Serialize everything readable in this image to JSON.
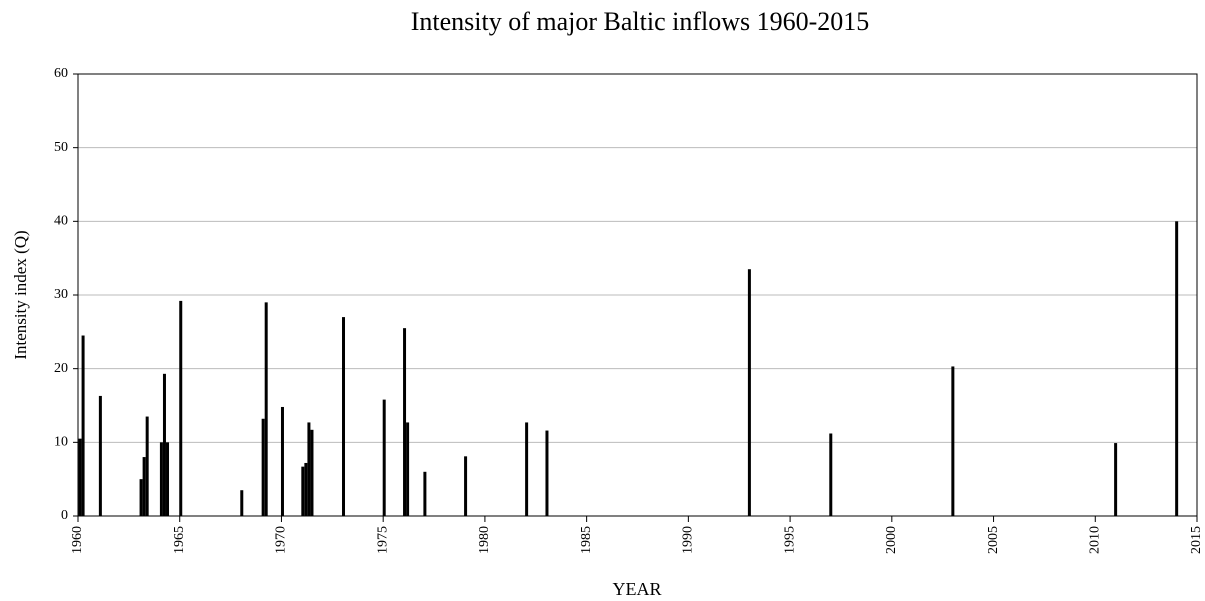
{
  "chart_data": {
    "type": "bar",
    "title": "Intensity of major Baltic inflows 1960-2015",
    "x_label": "YEAR",
    "y_label": "Intensity index (Q)",
    "x": [
      1960.1,
      1960.25,
      1961.1,
      1963.1,
      1963.25,
      1963.4,
      1964.1,
      1964.25,
      1964.4,
      1965.05,
      1968.05,
      1969.1,
      1969.25,
      1970.05,
      1971.05,
      1971.2,
      1971.35,
      1971.5,
      1973.05,
      1975.05,
      1976.05,
      1976.2,
      1977.05,
      1979.05,
      1982.05,
      1983.05,
      1993.0,
      1997.0,
      2003.0,
      2011.0,
      2014.0
    ],
    "values": [
      10.5,
      24.5,
      16.3,
      5,
      8,
      13.5,
      10,
      19.3,
      10,
      29.2,
      3.5,
      13.2,
      29,
      14.8,
      6.7,
      7.2,
      12.7,
      11.7,
      27,
      15.8,
      25.5,
      12.7,
      6,
      8.1,
      12.7,
      11.6,
      33.5,
      11.2,
      20.3,
      9.9,
      40
    ],
    "color": "#000000",
    "xlim": [
      1960,
      2015
    ],
    "xticks": [
      1960,
      1965,
      1970,
      1975,
      1980,
      1985,
      1990,
      1995,
      2000,
      2005,
      2010,
      2015
    ],
    "ylim": [
      0,
      60
    ],
    "yticks": [
      0,
      10,
      20,
      30,
      40,
      50,
      60
    ],
    "grid": true
  }
}
